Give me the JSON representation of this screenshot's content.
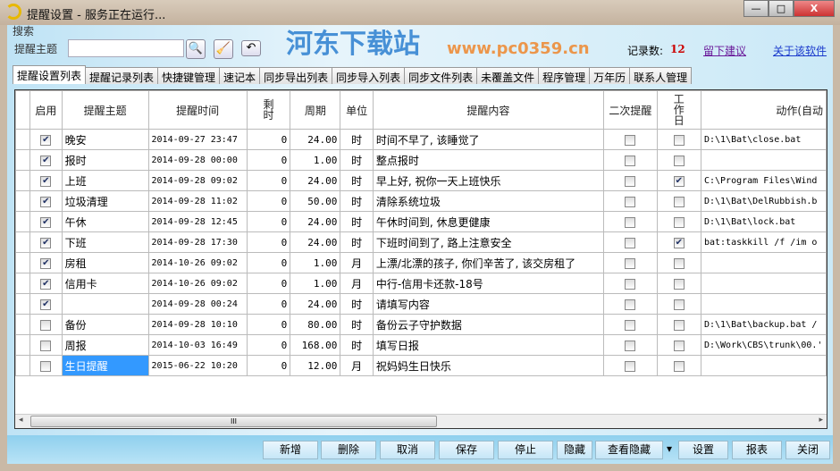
{
  "window": {
    "title": "提醒设置 - 服务正在运行...",
    "minimize": "—",
    "maximize": "□",
    "close": "X"
  },
  "watermark": {
    "text": "河东下载站",
    "url": "www.pc0359.cn"
  },
  "search": {
    "group_label": "搜索",
    "field_label": "提醒主题",
    "value": ""
  },
  "toolbar": {
    "search": "🔍",
    "clear": "🧹",
    "undo": "↶"
  },
  "record_count": {
    "label": "记录数:",
    "value": "12",
    "color": "#cc0000"
  },
  "links": {
    "feedback": "留下建议",
    "about": "关于该软件"
  },
  "tabs": [
    "提醒设置列表",
    "提醒记录列表",
    "快捷键管理",
    "速记本",
    "同步导出列表",
    "同步导入列表",
    "同步文件列表",
    "未覆盖文件",
    "程序管理",
    "万年历",
    "联系人管理"
  ],
  "table": {
    "columns": [
      "",
      "启用",
      "提醒主题",
      "提醒时间",
      "剩时",
      "周期",
      "单位",
      "提醒内容",
      "二次提醒",
      "工作日",
      "动作(自动"
    ],
    "rows": [
      {
        "enabled": true,
        "subject": "晚安",
        "time": "2014-09-27 23:47",
        "remain": "0",
        "period": "24.00",
        "unit": "时",
        "content": "时间不早了, 该睡觉了",
        "second": false,
        "workday": false,
        "action": "D:\\1\\Bat\\close.bat"
      },
      {
        "enabled": true,
        "subject": "报时",
        "time": "2014-09-28 00:00",
        "remain": "0",
        "period": "1.00",
        "unit": "时",
        "content": "整点报时",
        "second": false,
        "workday": false,
        "action": ""
      },
      {
        "enabled": true,
        "subject": "上班",
        "time": "2014-09-28 09:02",
        "remain": "0",
        "period": "24.00",
        "unit": "时",
        "content": "早上好, 祝你一天上班快乐",
        "second": false,
        "workday": true,
        "action": "C:\\Program Files\\Wind"
      },
      {
        "enabled": true,
        "subject": "垃圾清理",
        "time": "2014-09-28 11:02",
        "remain": "0",
        "period": "50.00",
        "unit": "时",
        "content": "清除系统垃圾",
        "second": false,
        "workday": false,
        "action": "D:\\1\\Bat\\DelRubbish.b"
      },
      {
        "enabled": true,
        "subject": "午休",
        "time": "2014-09-28 12:45",
        "remain": "0",
        "period": "24.00",
        "unit": "时",
        "content": "午休时间到, 休息更健康",
        "second": false,
        "workday": false,
        "action": "D:\\1\\Bat\\lock.bat"
      },
      {
        "enabled": true,
        "subject": "下班",
        "time": "2014-09-28 17:30",
        "remain": "0",
        "period": "24.00",
        "unit": "时",
        "content": "下班时间到了, 路上注意安全",
        "second": false,
        "workday": true,
        "action": "bat:taskkill /f /im o"
      },
      {
        "enabled": true,
        "subject": "房租",
        "time": "2014-10-26 09:02",
        "remain": "0",
        "period": "1.00",
        "unit": "月",
        "content": "上漂/北漂的孩子, 你们辛苦了, 该交房租了",
        "second": false,
        "workday": false,
        "action": ""
      },
      {
        "enabled": true,
        "subject": "信用卡",
        "time": "2014-10-26 09:02",
        "remain": "0",
        "period": "1.00",
        "unit": "月",
        "content": "中行-信用卡还款-18号",
        "second": false,
        "workday": false,
        "action": ""
      },
      {
        "enabled": true,
        "subject": "",
        "time": "2014-09-28 00:24",
        "remain": "0",
        "period": "24.00",
        "unit": "时",
        "content": "请填写内容",
        "second": false,
        "workday": false,
        "action": ""
      },
      {
        "enabled": false,
        "subject": "备份",
        "time": "2014-09-28 10:10",
        "remain": "0",
        "period": "80.00",
        "unit": "时",
        "content": "备份云子守护数据",
        "second": false,
        "workday": false,
        "action": "D:\\1\\Bat\\backup.bat /"
      },
      {
        "enabled": false,
        "subject": "周报",
        "time": "2014-10-03 16:49",
        "remain": "0",
        "period": "168.00",
        "unit": "时",
        "content": "填写日报",
        "second": false,
        "workday": false,
        "action": "D:\\Work\\CBS\\trunk\\00.'"
      },
      {
        "enabled": false,
        "subject": "生日提醒",
        "time": "2015-06-22 10:20",
        "remain": "0",
        "period": "12.00",
        "unit": "月",
        "content": "祝妈妈生日快乐",
        "second": false,
        "workday": false,
        "action": "",
        "selected": true
      }
    ]
  },
  "scrollbar": {
    "grip": "III",
    "left": "◂",
    "right": "▸"
  },
  "buttons": {
    "add": "新增",
    "delete": "删除",
    "cancel": "取消",
    "save": "保存",
    "stop": "停止",
    "hide": "隐藏",
    "view_hidden": "查看隐藏",
    "dropdown": "▾",
    "settings": "设置",
    "report": "报表",
    "close": "关闭"
  }
}
